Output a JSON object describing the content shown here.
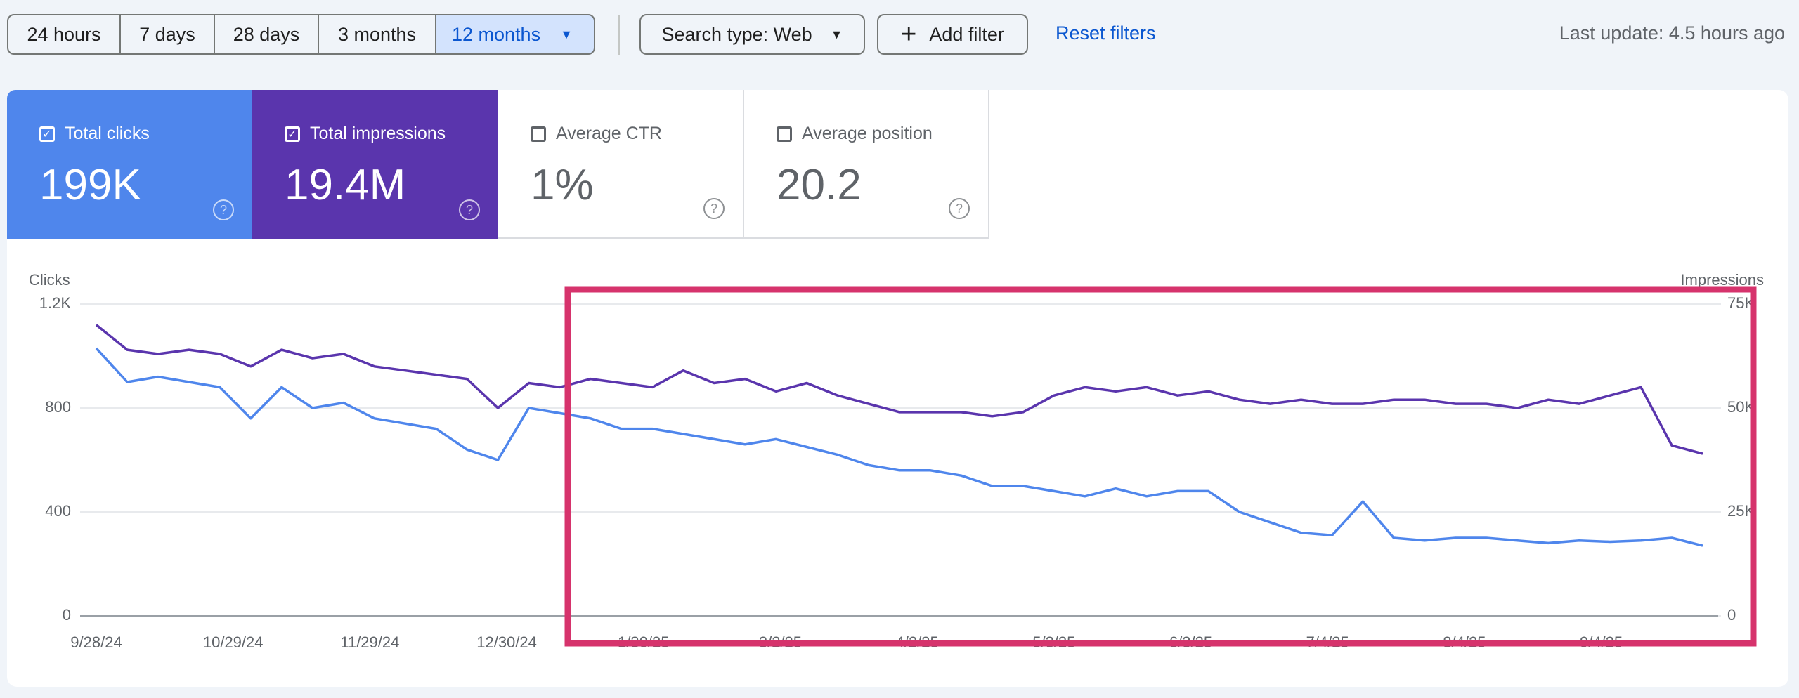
{
  "toolbar": {
    "ranges": [
      "24 hours",
      "7 days",
      "28 days",
      "3 months",
      "12 months"
    ],
    "search_type": "Search type: Web",
    "add_filter": "Add filter",
    "reset": "Reset filters",
    "last_update": "Last update: 4.5 hours ago"
  },
  "cards": [
    {
      "label": "Total clicks",
      "value": "199K"
    },
    {
      "label": "Total impressions",
      "value": "19.4M"
    },
    {
      "label": "Average CTR",
      "value": "1%"
    },
    {
      "label": "Average position",
      "value": "20.2"
    }
  ],
  "chart_data": {
    "type": "line",
    "y_label": "Clicks",
    "y2_label": "Impressions",
    "x": [
      "9/28/24",
      "10/5/24",
      "10/12/24",
      "10/19/24",
      "10/26/24",
      "11/2/24",
      "11/9/24",
      "11/16/24",
      "11/23/24",
      "11/30/24",
      "12/7/24",
      "12/14/24",
      "12/21/24",
      "12/28/24",
      "1/4/25",
      "1/11/25",
      "1/18/25",
      "1/25/25",
      "2/1/25",
      "2/8/25",
      "2/15/25",
      "2/22/25",
      "3/1/25",
      "3/8/25",
      "3/15/25",
      "3/22/25",
      "3/29/25",
      "4/5/25",
      "4/12/25",
      "4/19/25",
      "4/26/25",
      "5/3/25",
      "5/10/25",
      "5/17/25",
      "5/24/25",
      "5/31/25",
      "6/7/25",
      "6/14/25",
      "6/21/25",
      "6/28/25",
      "7/5/25",
      "7/12/25",
      "7/19/25",
      "7/26/25",
      "8/2/25",
      "8/9/25",
      "8/16/25",
      "8/23/25",
      "8/30/25",
      "9/6/25",
      "9/13/25",
      "9/20/25",
      "9/27/25"
    ],
    "xticks": [
      "9/28/24",
      "10/29/24",
      "11/29/24",
      "12/30/24",
      "1/30/25",
      "3/2/25",
      "4/2/25",
      "5/3/25",
      "6/3/25",
      "7/4/25",
      "8/4/25",
      "9/4/25"
    ],
    "ylim": [
      0,
      1200
    ],
    "yticks": [
      0,
      400,
      800,
      {
        "value": 1200,
        "label": "1.2K"
      }
    ],
    "y2lim": [
      0,
      75000
    ],
    "y2ticks": [
      0,
      {
        "value": 25000,
        "label": "25K"
      },
      {
        "value": 50000,
        "label": "50K"
      },
      {
        "value": 75000,
        "label": "75K"
      }
    ],
    "grid": true,
    "series": [
      {
        "name": "Total clicks",
        "color": "#4f86ec",
        "values": [
          1030,
          900,
          920,
          900,
          880,
          760,
          880,
          800,
          820,
          760,
          740,
          720,
          640,
          600,
          800,
          780,
          760,
          720,
          720,
          700,
          680,
          660,
          680,
          650,
          620,
          580,
          560,
          560,
          540,
          500,
          500,
          480,
          460,
          490,
          460,
          480,
          480,
          400,
          360,
          320,
          310,
          440,
          300,
          290,
          300,
          300,
          290,
          280,
          290,
          285,
          290,
          300,
          270
        ]
      },
      {
        "name": "Total impressions",
        "color": "#5a35ad",
        "axis": "y2",
        "values": [
          70000,
          64000,
          63000,
          64000,
          63000,
          60000,
          64000,
          62000,
          63000,
          60000,
          59000,
          58000,
          57000,
          50000,
          56000,
          55000,
          57000,
          56000,
          55000,
          59000,
          56000,
          57000,
          54000,
          56000,
          53000,
          51000,
          49000,
          49000,
          49000,
          48000,
          49000,
          53000,
          55000,
          54000,
          55000,
          53000,
          54000,
          52000,
          51000,
          52000,
          51000,
          51000,
          52000,
          52000,
          51000,
          51000,
          50000,
          52000,
          51000,
          53000,
          55000,
          41000,
          39000
        ]
      }
    ]
  }
}
